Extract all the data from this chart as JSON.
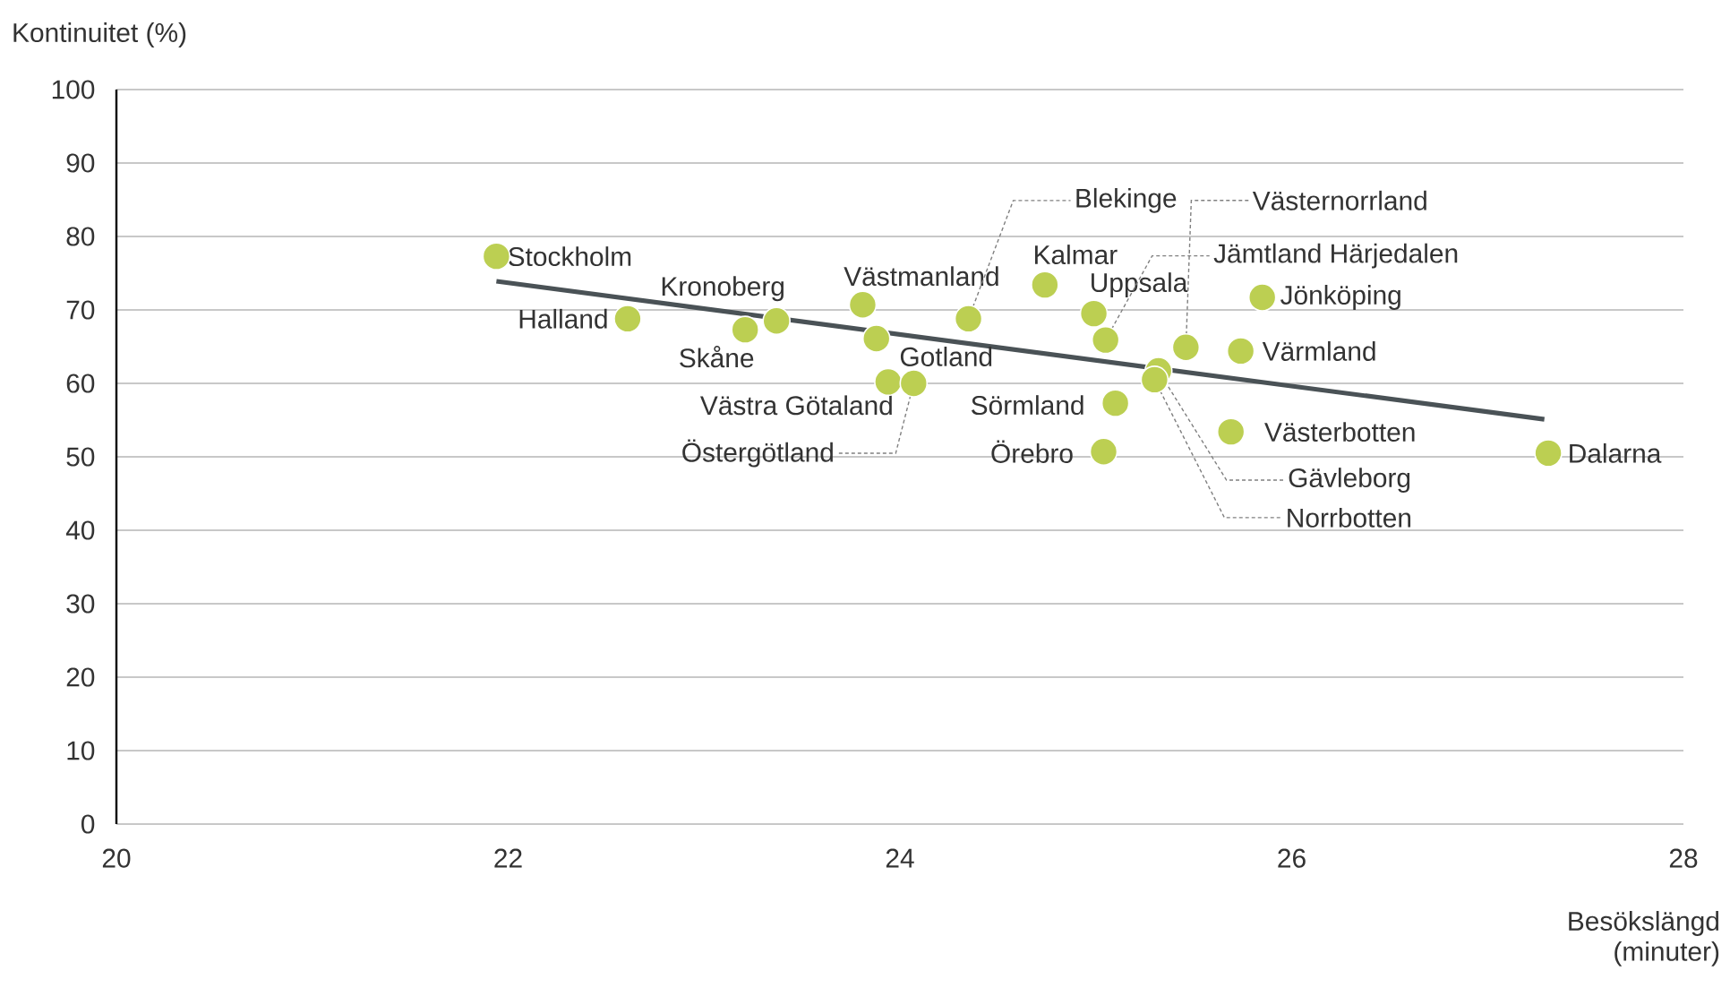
{
  "chart_data": {
    "type": "scatter",
    "xlabel": "Besökslängd (minuter)",
    "ylabel": "Kontinuitet (%)",
    "xlim": [
      20,
      28
    ],
    "xticks": [
      20,
      22,
      24,
      26,
      28
    ],
    "ylim": [
      0,
      100
    ],
    "yticks": [
      0,
      10,
      20,
      30,
      40,
      50,
      60,
      70,
      80,
      90,
      100
    ],
    "grid": "y",
    "marker": "circle",
    "series": [
      {
        "type": "scatter",
        "color": "#bccf52",
        "x": [
          21.94,
          22.61,
          23.21,
          23.37,
          23.81,
          23.88,
          23.94,
          24.07,
          24.35,
          24.74,
          24.99,
          25.05,
          25.46,
          25.85,
          25.74,
          25.69,
          27.31,
          25.1,
          25.04,
          25.32,
          25.3
        ],
        "values": [
          77.3,
          68.8,
          67.3,
          68.5,
          70.7,
          66.1,
          60.2,
          60.0,
          68.8,
          73.4,
          69.5,
          65.9,
          64.9,
          71.7,
          64.4,
          53.4,
          50.5,
          57.3,
          50.7,
          61.7,
          60.5
        ]
      },
      {
        "type": "line",
        "marker": "none",
        "color": "#4a5256",
        "x": [
          21.94,
          27.29
        ],
        "values": [
          73.9,
          55.1
        ]
      }
    ],
    "annotations": [
      {
        "text": "Stockholm",
        "x": 21.94,
        "y": 77.3
      },
      {
        "text": "Halland",
        "x": 22.61,
        "y": 68.8
      },
      {
        "text": "Skåne",
        "x": 23.21,
        "y": 67.3
      },
      {
        "text": "Kronoberg",
        "x": 23.37,
        "y": 68.5
      },
      {
        "text": "Västmanland",
        "x": 23.81,
        "y": 70.7
      },
      {
        "text": "Gotland",
        "x": 23.88,
        "y": 66.1
      },
      {
        "text": "Västra Götaland",
        "x": 23.94,
        "y": 60.2
      },
      {
        "text": "Östergötland",
        "x": 24.07,
        "y": 60.0
      },
      {
        "text": "Blekinge",
        "x": 24.35,
        "y": 68.8
      },
      {
        "text": "Kalmar",
        "x": 24.74,
        "y": 73.4
      },
      {
        "text": "Uppsala",
        "x": 24.99,
        "y": 69.5
      },
      {
        "text": "Jämtland Härjedalen",
        "x": 25.05,
        "y": 65.9
      },
      {
        "text": "Västernorrland",
        "x": 25.46,
        "y": 64.9
      },
      {
        "text": "Jönköping",
        "x": 25.85,
        "y": 71.7
      },
      {
        "text": "Värmland",
        "x": 25.74,
        "y": 64.4
      },
      {
        "text": "Västerbotten",
        "x": 25.69,
        "y": 53.4
      },
      {
        "text": "Dalarna",
        "x": 27.31,
        "y": 50.5
      },
      {
        "text": "Sörmland",
        "x": 25.1,
        "y": 57.3
      },
      {
        "text": "Örebro",
        "x": 25.04,
        "y": 50.7
      },
      {
        "text": "Gävleborg",
        "x": 25.32,
        "y": 61.7
      },
      {
        "text": "Norrbotten",
        "x": 25.3,
        "y": 60.5
      }
    ]
  }
}
